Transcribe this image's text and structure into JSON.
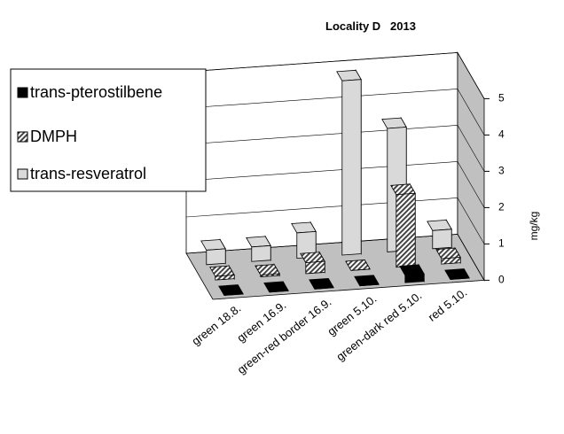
{
  "chart_data": {
    "type": "bar3d",
    "title": "Locality D   2013",
    "categories": [
      "green 18.8.",
      "green 16.9.",
      "green-red border 16.9.",
      "green 5.10.",
      "green-dark red 5.10.",
      "red 5.10."
    ],
    "series": [
      {
        "name": "trans-pterostilbene",
        "color": "#000000",
        "values": [
          0,
          0,
          0,
          0,
          0.2,
          0
        ]
      },
      {
        "name": "DMPH",
        "color": "#444444",
        "values": [
          0.1,
          0.05,
          0.3,
          0,
          2.0,
          0.15
        ]
      },
      {
        "name": "trans-resveratrol",
        "color": "#d9d9d9",
        "values": [
          0.4,
          0.4,
          0.7,
          4.8,
          3.4,
          0.5
        ]
      }
    ],
    "y_label": "mg/kg",
    "ylim": [
      0,
      5
    ],
    "yticks": [
      0,
      1,
      2,
      3,
      4,
      5
    ],
    "grid": true,
    "legend": "upper-left"
  }
}
